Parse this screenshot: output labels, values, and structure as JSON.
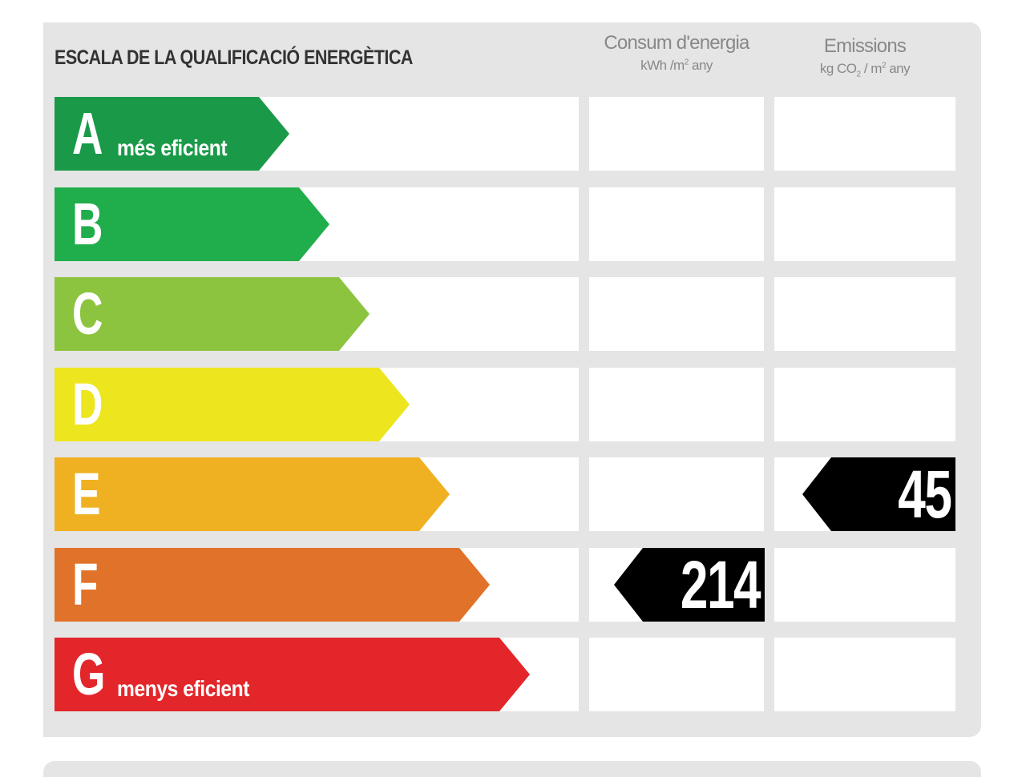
{
  "header": {
    "title": "ESCALA DE LA QUALIFICACIÓ ENERGÈTICA",
    "energy_col": {
      "label": "Consum d'energia",
      "unit_a": "kWh /m",
      "unit_sup": "2",
      "unit_b": " any"
    },
    "emissions_col": {
      "label": "Emissions",
      "unit_a": "kg CO",
      "unit_sub": "2",
      "unit_b": " / m",
      "unit_sup": "2",
      "unit_c": " any"
    }
  },
  "bands": [
    {
      "letter": "A",
      "sub": "més eficient",
      "color": "#1a9a48"
    },
    {
      "letter": "B",
      "sub": "",
      "color": "#20ad4b"
    },
    {
      "letter": "C",
      "sub": "",
      "color": "#8cc43f"
    },
    {
      "letter": "D",
      "sub": "",
      "color": "#ede51e"
    },
    {
      "letter": "E",
      "sub": "",
      "color": "#efb122"
    },
    {
      "letter": "F",
      "sub": "",
      "color": "#e1722a"
    },
    {
      "letter": "G",
      "sub": "menys eficient",
      "color": "#e2262a"
    }
  ],
  "ratings": {
    "energy": {
      "band": "F",
      "value": "214"
    },
    "emissions": {
      "band": "E",
      "value": "45"
    }
  }
}
